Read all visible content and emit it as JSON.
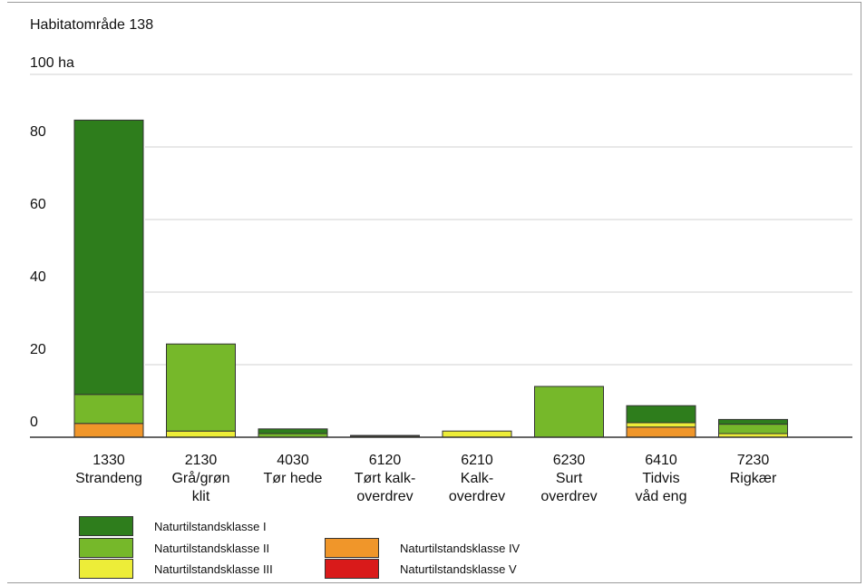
{
  "chart_data": {
    "type": "bar",
    "stacked": true,
    "title": "Habitatområde 138",
    "ylabel": "100 ha",
    "ylim": [
      0,
      100
    ],
    "yticks": [
      0,
      20,
      40,
      60,
      80
    ],
    "categories": [
      [
        "1330",
        "Strandeng"
      ],
      [
        "2130",
        "Grå/grøn",
        "klit"
      ],
      [
        "4030",
        "Tør hede"
      ],
      [
        "6120",
        "Tørt kalk-",
        "overdrev"
      ],
      [
        "6210",
        "Kalk-",
        "overdrev"
      ],
      [
        "6230",
        "Surt",
        "overdrev"
      ],
      [
        "6410",
        "Tidvis",
        "våd eng"
      ],
      [
        "7230",
        "Rigkær"
      ]
    ],
    "series": [
      {
        "name": "Naturtilstandsklasse V",
        "color": "#d91a1a",
        "values": [
          0,
          0,
          0,
          0,
          0,
          0,
          0,
          0
        ]
      },
      {
        "name": "Naturtilstandsklasse IV",
        "color": "#f0962a",
        "values": [
          3.8,
          0,
          0,
          0,
          0,
          0,
          2.8,
          0
        ]
      },
      {
        "name": "Naturtilstandsklasse III",
        "color": "#eded38",
        "values": [
          0,
          1.7,
          0,
          0.3,
          1.7,
          0,
          1.2,
          1
        ]
      },
      {
        "name": "Naturtilstandsklasse II",
        "color": "#76b82a",
        "values": [
          8,
          24,
          1,
          0.2,
          0,
          14,
          0,
          2.6
        ]
      },
      {
        "name": "Naturtilstandsklasse I",
        "color": "#2e7d1c",
        "values": [
          75.6,
          0,
          1.3,
          0,
          0,
          0,
          4.7,
          1.3
        ]
      }
    ],
    "grid": true,
    "legend_position": "bottom"
  },
  "legend": [
    {
      "label": "Naturtilstandsklasse I",
      "color": "#2e7d1c"
    },
    {
      "label": "Naturtilstandsklasse II",
      "color": "#76b82a"
    },
    {
      "label": "Naturtilstandsklasse III",
      "color": "#eded38"
    },
    {
      "label": "Naturtilstandsklasse IV",
      "color": "#f0962a"
    },
    {
      "label": "Naturtilstandsklasse V",
      "color": "#d91a1a"
    }
  ]
}
